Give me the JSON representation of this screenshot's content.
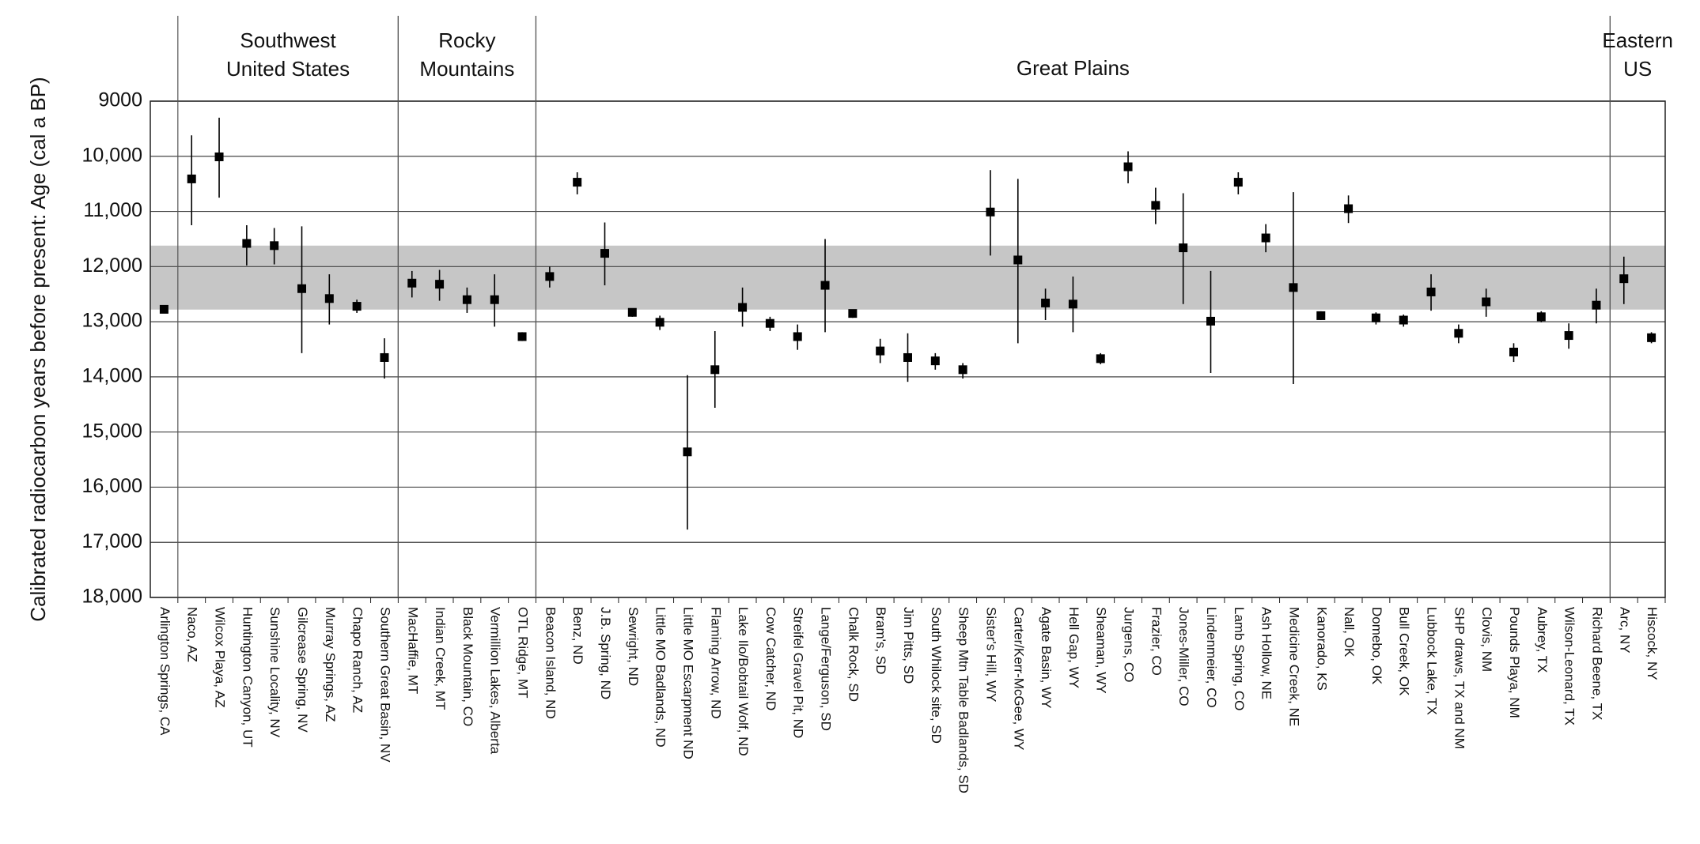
{
  "chart_data": {
    "type": "errorbar",
    "y_label": "Calibrated radiocarbon years before present: Age (cal a BP)",
    "categories": [
      "Arlington Springs, CA",
      "Naco, AZ",
      "Wilcox Playa, AZ",
      "Huntington Canyon, UT",
      "Sunshine Locality, NV",
      "Gilcrease Spring, NV",
      "Murray Springs, AZ",
      "Chapo Ranch, AZ",
      "Southern Great Basin, NV",
      "MacHaffie, MT",
      "Indian Creek, MT",
      "Black Mountain, CO",
      "Vermillion Lakes, Alberta",
      "OTL Ridge, MT",
      "Beacon Island, ND",
      "Benz, ND",
      "J.B. Spring, ND",
      "Sewright, ND",
      "Little MO Badlands, ND",
      "Little MO Escarpment ND",
      "Flaming Arrow, ND",
      "Lake Ilo/Bobtail Wolf, ND",
      "Cow Catcher, ND",
      "Streifel Gravel Pit, ND",
      "Lange/Ferguson, SD",
      "Chalk Rock, SD",
      "Bram's, SD",
      "Jim Pitts, SD",
      "South Whilock site, SD",
      "Sheep Mtn Table Badlands, SD",
      "Sister's Hill, WY",
      "Carter/Kerr-McGee, WY",
      "Agate Basin, WY",
      "Hell Gap, WY",
      "Sheaman, WY",
      "Jurgens, CO",
      "Frazier, CO",
      "Jones-Miller, CO",
      "Lindenmeier, CO",
      "Lamb Spring, CO",
      "Ash Hollow, NE",
      "Medicine Creek, NE",
      "Kanorado, KS",
      "Nall, OK",
      "Domebo, OK",
      "Bull Creek, OK",
      "Lubbock Lake, TX",
      "SHP draws, TX and NM",
      "Clovis, NM",
      "Pounds Playa, NM",
      "Aubrey, TX",
      "Wilson-Leonard, TX",
      "Richard Beene, TX",
      "Arc, NY",
      "Hiscock, NY"
    ],
    "values": [
      12775,
      10410,
      10010,
      11580,
      11620,
      12400,
      12580,
      12720,
      13650,
      12300,
      12320,
      12600,
      12600,
      13270,
      12180,
      10470,
      11760,
      12830,
      13010,
      15360,
      13870,
      12740,
      13030,
      13270,
      12340,
      12850,
      13530,
      13650,
      13710,
      13870,
      11010,
      11880,
      12660,
      12680,
      13670,
      10190,
      10890,
      11660,
      12990,
      10470,
      11480,
      12380,
      12890,
      10950,
      12930,
      12970,
      12460,
      13210,
      12640,
      13550,
      12910,
      13250,
      12700,
      12220,
      13290
    ],
    "error_low": [
      12750,
      9620,
      9300,
      11250,
      11300,
      11270,
      12140,
      12600,
      13300,
      12080,
      12060,
      12380,
      12140,
      13190,
      12000,
      10290,
      11200,
      12760,
      12890,
      13970,
      13170,
      12380,
      12910,
      13050,
      11500,
      12780,
      13310,
      13210,
      13570,
      13750,
      10250,
      10410,
      12400,
      12180,
      13570,
      9910,
      10570,
      10670,
      12080,
      10290,
      11230,
      10650,
      12810,
      10710,
      12830,
      12870,
      12140,
      13050,
      12400,
      13390,
      12810,
      13030,
      12400,
      11820,
      13190
    ],
    "error_high": [
      12800,
      11250,
      10750,
      11980,
      11960,
      13570,
      13050,
      12840,
      14030,
      12560,
      12620,
      12840,
      13090,
      13350,
      12380,
      10690,
      12340,
      12910,
      13150,
      16770,
      14560,
      13090,
      13170,
      13510,
      13190,
      12930,
      13750,
      14090,
      13870,
      14030,
      11800,
      13390,
      12970,
      13190,
      13770,
      10490,
      11230,
      12680,
      13930,
      10690,
      11740,
      14130,
      12970,
      11210,
      13050,
      13090,
      12800,
      13390,
      12910,
      13730,
      13010,
      13490,
      13030,
      12680,
      13390
    ],
    "band": [
      11620,
      12780
    ],
    "regions": [
      {
        "label": [
          "Southwest",
          "United States"
        ],
        "first": 1,
        "last": 8
      },
      {
        "label": [
          "Rocky",
          "Mountains"
        ],
        "first": 9,
        "last": 13
      },
      {
        "label": [
          "Great Plains"
        ],
        "first": 14,
        "last": 52
      },
      {
        "label": [
          "Eastern",
          "US"
        ],
        "first": 53,
        "last": 54
      }
    ],
    "ylim": [
      9000,
      18000
    ],
    "y_inverted": true,
    "yticks": [
      9000,
      {
        "value": 10000,
        "label": "10,000"
      },
      {
        "value": 11000,
        "label": "11,000"
      },
      {
        "value": 12000,
        "label": "12,000"
      },
      {
        "value": 13000,
        "label": "13,000"
      },
      {
        "value": 14000,
        "label": "14,000"
      },
      {
        "value": 15000,
        "label": "15,000"
      },
      {
        "value": 16000,
        "label": "16,000"
      },
      {
        "value": 17000,
        "label": "17,000"
      },
      {
        "value": 18000,
        "label": "18,000"
      }
    ],
    "grid": true,
    "color": "#000000",
    "band_color": "#c6c6c6"
  }
}
